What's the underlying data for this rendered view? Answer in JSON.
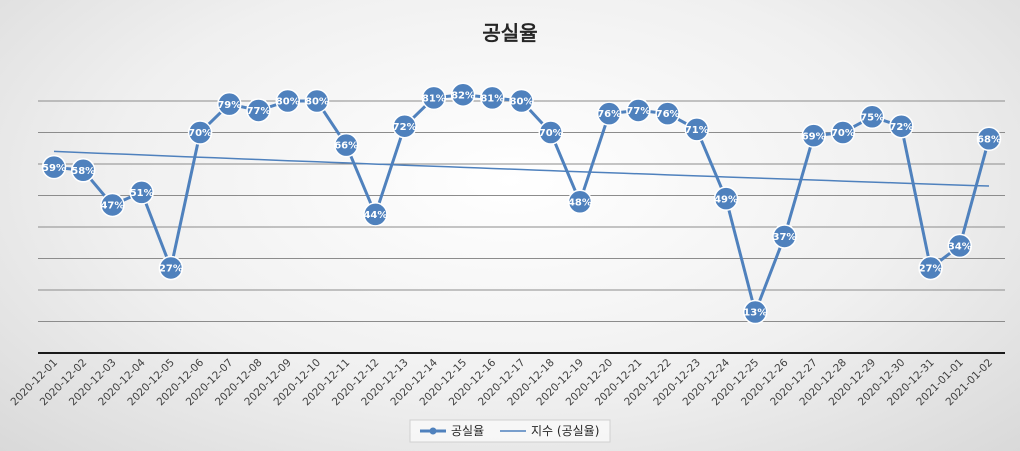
{
  "chart_data": {
    "type": "line",
    "title": "공실율",
    "categories": [
      "2020-12-01",
      "2020-12-02",
      "2020-12-03",
      "2020-12-04",
      "2020-12-05",
      "2020-12-06",
      "2020-12-07",
      "2020-12-08",
      "2020-12-09",
      "2020-12-10",
      "2020-12-11",
      "2020-12-12",
      "2020-12-13",
      "2020-12-14",
      "2020-12-15",
      "2020-12-16",
      "2020-12-17",
      "2020-12-18",
      "2020-12-19",
      "2020-12-20",
      "2020-12-21",
      "2020-12-22",
      "2020-12-23",
      "2020-12-24",
      "2020-12-25",
      "2020-12-26",
      "2020-12-27",
      "2020-12-28",
      "2020-12-29",
      "2020-12-30",
      "2020-12-31",
      "2021-01-01",
      "2021-01-02"
    ],
    "series": [
      {
        "name": "공실율",
        "values": [
          59,
          58,
          47,
          51,
          27,
          70,
          79,
          77,
          80,
          80,
          66,
          44,
          72,
          81,
          82,
          81,
          80,
          70,
          48,
          76,
          77,
          76,
          71,
          49,
          13,
          37,
          69,
          70,
          75,
          72,
          27,
          34,
          68
        ],
        "labels": [
          "59%",
          "58%",
          "47%",
          "51%",
          "27%",
          "70%",
          "79%",
          "77%",
          "80%",
          "80%",
          "66%",
          "44%",
          "72%",
          "81%",
          "82%",
          "81%",
          "80%",
          "70%",
          "48%",
          "76%",
          "77%",
          "76%",
          "71%",
          "49%",
          "13%",
          "37%",
          "69%",
          "70%",
          "75%",
          "72%",
          "27%",
          "34%",
          "68%"
        ],
        "color": "#4f81bd"
      }
    ],
    "trendline": {
      "name": "지수 (공실율)",
      "type": "exponential",
      "start": 64,
      "end": 53,
      "color": "#4f81bd"
    },
    "ylim": [
      0,
      100
    ],
    "grid": true,
    "legend_position": "bottom-center",
    "xlabel": "",
    "ylabel": ""
  }
}
